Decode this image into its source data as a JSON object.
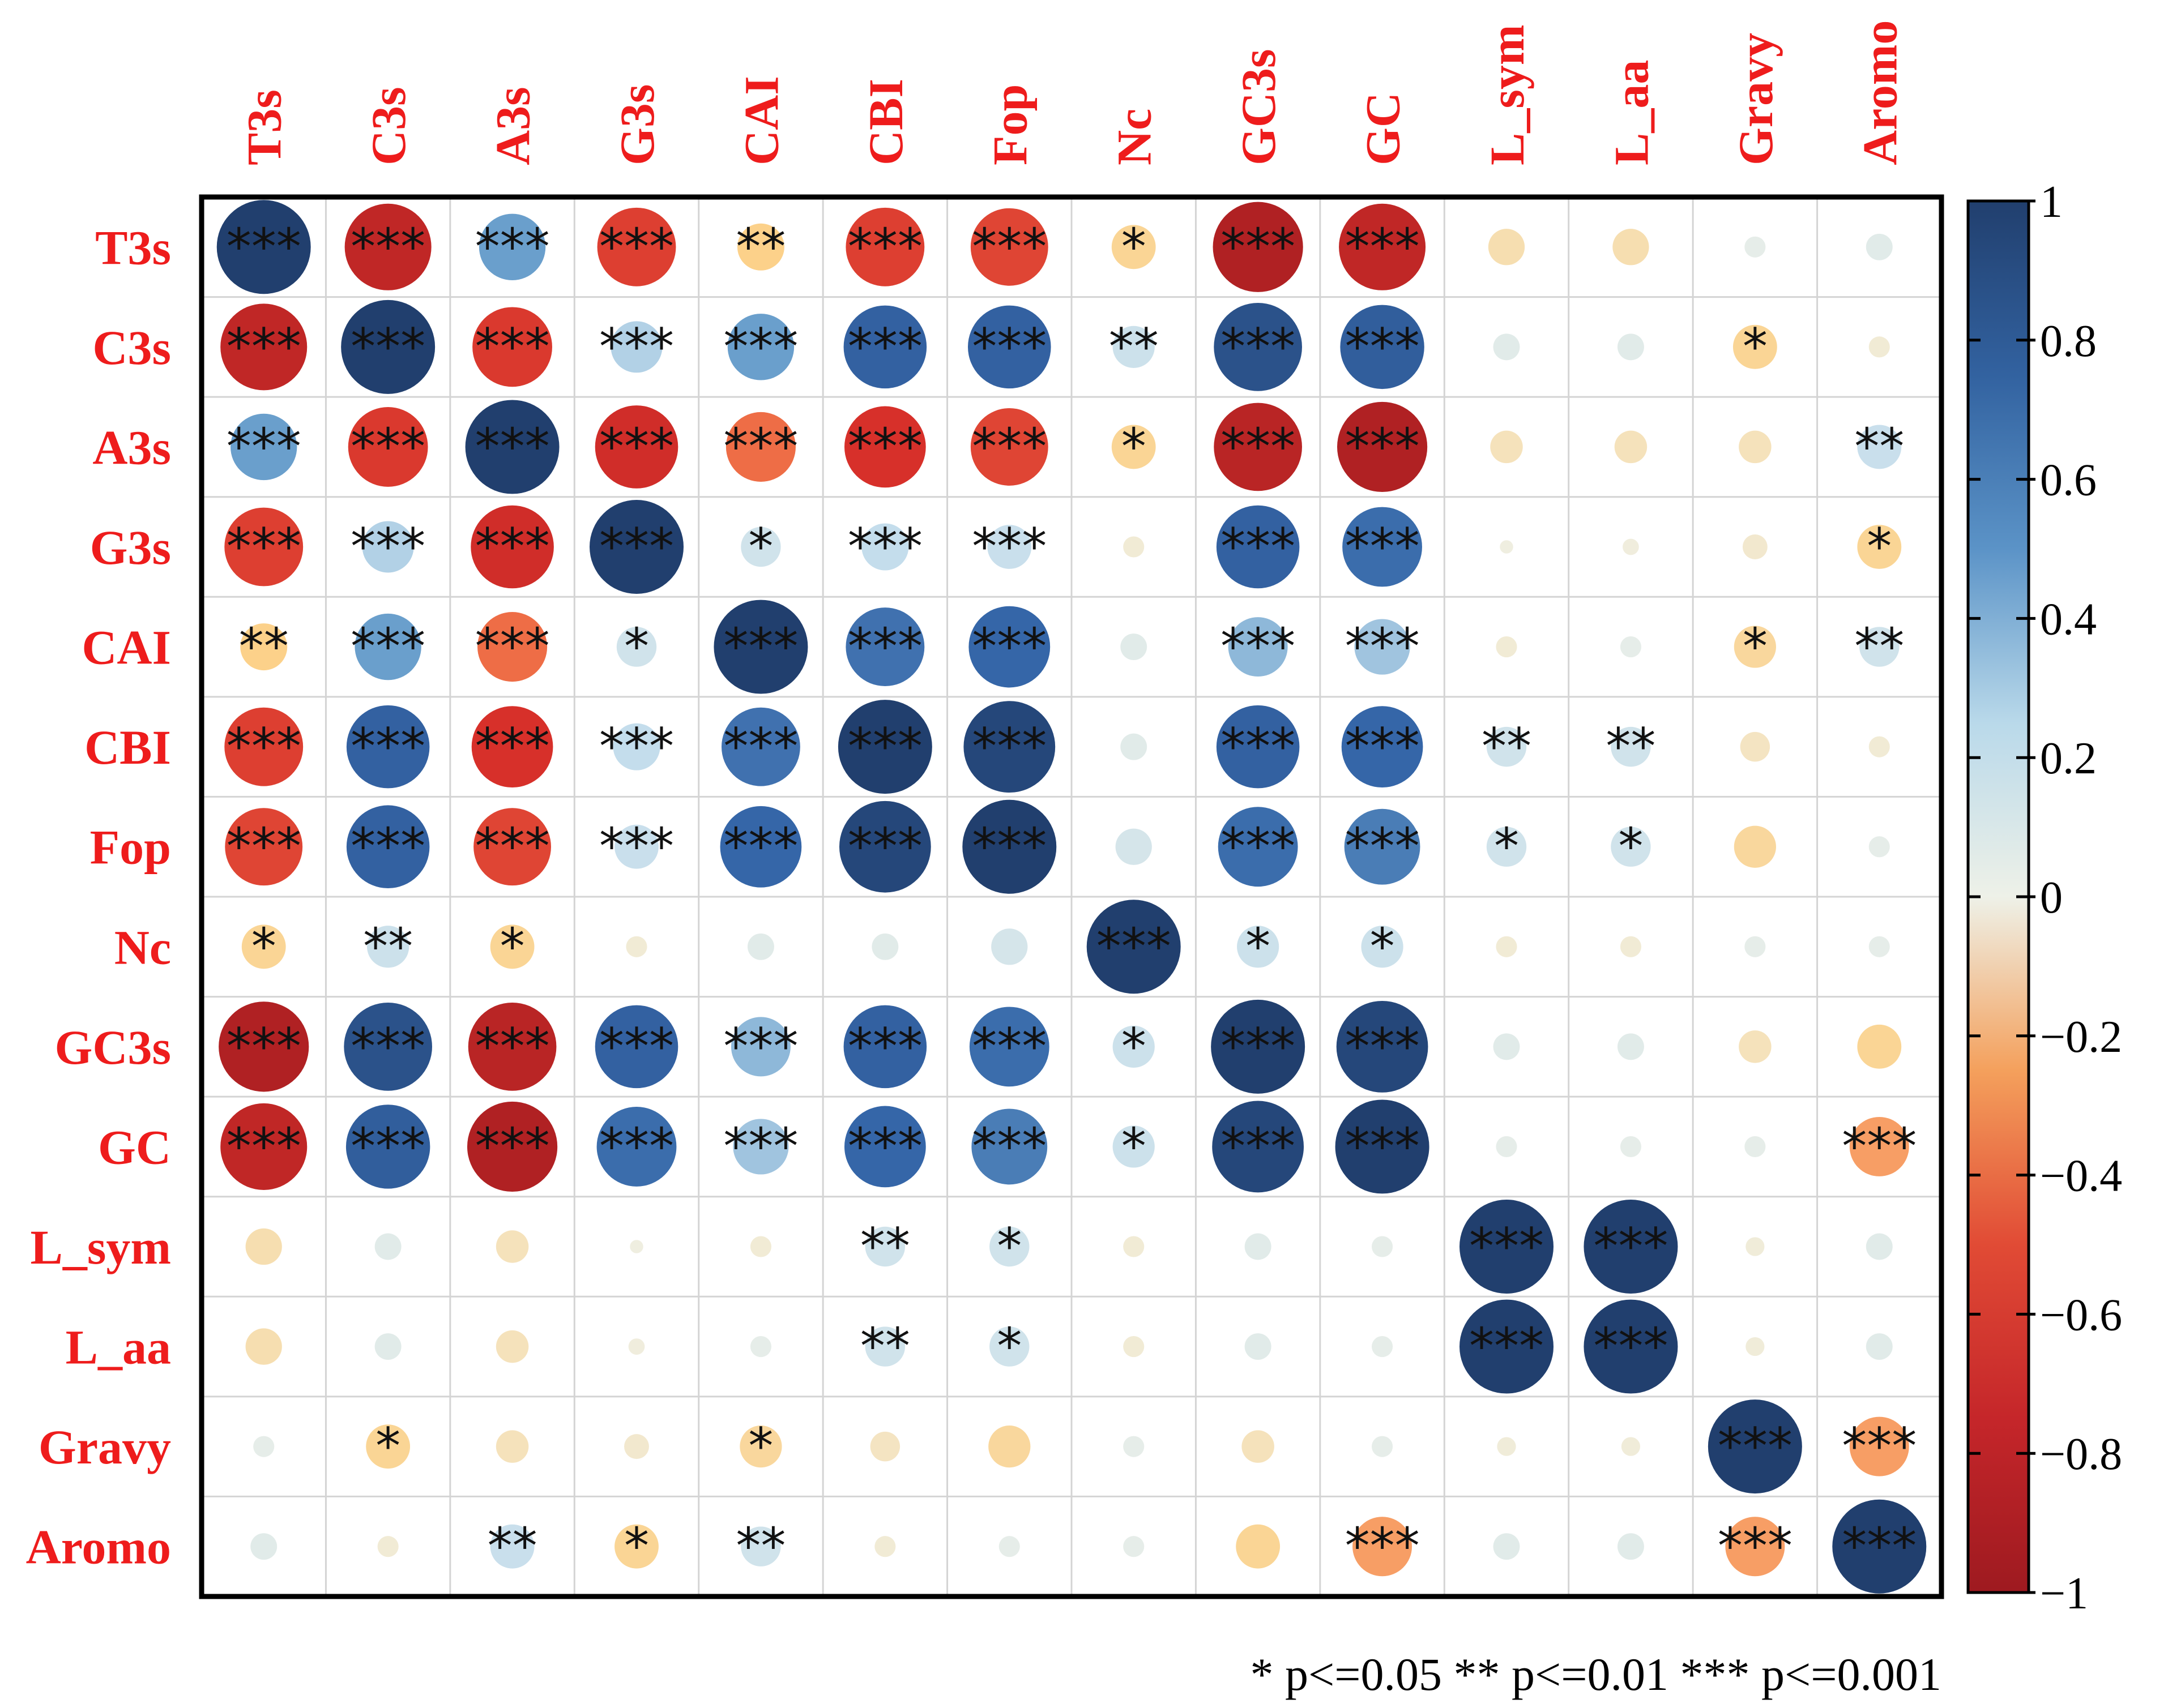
{
  "chart_data": {
    "type": "heatmap",
    "variables": [
      "T3s",
      "C3s",
      "A3s",
      "G3s",
      "CAI",
      "CBI",
      "Fop",
      "Nc",
      "GC3s",
      "GC",
      "L_sym",
      "L_aa",
      "Gravy",
      "Aromo"
    ],
    "matrix": [
      [
        1.0,
        -0.85,
        0.5,
        -0.7,
        -0.25,
        -0.7,
        -0.68,
        -0.22,
        -0.92,
        -0.85,
        -0.15,
        -0.15,
        0.05,
        0.08
      ],
      [
        -0.85,
        1.0,
        -0.72,
        0.3,
        0.5,
        0.78,
        0.78,
        0.2,
        0.88,
        0.8,
        0.08,
        0.08,
        -0.22,
        -0.05
      ],
      [
        0.5,
        -0.72,
        1.0,
        -0.78,
        -0.55,
        -0.75,
        -0.68,
        -0.22,
        -0.88,
        -0.92,
        -0.12,
        -0.12,
        -0.12,
        0.22
      ],
      [
        -0.7,
        0.3,
        -0.78,
        1.0,
        0.18,
        0.25,
        0.22,
        -0.05,
        0.78,
        0.72,
        -0.02,
        -0.03,
        -0.07,
        -0.22
      ],
      [
        -0.25,
        0.5,
        -0.55,
        0.18,
        1.0,
        0.7,
        0.75,
        0.08,
        0.4,
        0.35,
        -0.05,
        0.05,
        -0.2,
        0.18
      ],
      [
        -0.7,
        0.78,
        -0.75,
        0.25,
        0.7,
        1.0,
        0.95,
        0.08,
        0.78,
        0.75,
        0.18,
        0.18,
        -0.1,
        -0.05
      ],
      [
        -0.68,
        0.78,
        -0.68,
        0.22,
        0.75,
        0.95,
        1.0,
        0.15,
        0.72,
        0.65,
        0.18,
        0.18,
        -0.2,
        0.05
      ],
      [
        -0.22,
        0.2,
        -0.22,
        -0.05,
        0.08,
        0.08,
        0.15,
        1.0,
        0.2,
        0.2,
        -0.05,
        -0.05,
        0.05,
        0.05
      ],
      [
        -0.92,
        0.88,
        -0.88,
        0.78,
        0.4,
        0.78,
        0.72,
        0.2,
        1.0,
        0.95,
        0.08,
        0.08,
        -0.12,
        -0.22
      ],
      [
        -0.85,
        0.8,
        -0.92,
        0.72,
        0.35,
        0.75,
        0.65,
        0.2,
        0.95,
        1.0,
        0.05,
        0.05,
        0.05,
        -0.4
      ],
      [
        -0.15,
        0.08,
        -0.12,
        -0.02,
        -0.05,
        0.18,
        0.18,
        -0.05,
        0.08,
        0.05,
        1.0,
        1.0,
        -0.04,
        0.08
      ],
      [
        -0.15,
        0.08,
        -0.12,
        -0.03,
        0.05,
        0.18,
        0.18,
        -0.05,
        0.08,
        0.05,
        1.0,
        1.0,
        -0.04,
        0.08
      ],
      [
        0.05,
        -0.22,
        -0.12,
        -0.07,
        -0.2,
        -0.1,
        -0.2,
        0.05,
        -0.12,
        0.05,
        -0.04,
        -0.04,
        1.0,
        -0.4
      ],
      [
        0.08,
        -0.05,
        0.22,
        -0.22,
        0.18,
        -0.05,
        0.05,
        0.05,
        -0.22,
        -0.4,
        0.08,
        0.08,
        -0.4,
        1.0
      ]
    ],
    "significance": [
      [
        "***",
        "***",
        "***",
        "***",
        "**",
        "***",
        "***",
        "*",
        "***",
        "***",
        "",
        "",
        "",
        ""
      ],
      [
        "***",
        "***",
        "***",
        "***",
        "***",
        "***",
        "***",
        "**",
        "***",
        "***",
        "",
        "",
        "*",
        ""
      ],
      [
        "***",
        "***",
        "***",
        "***",
        "***",
        "***",
        "***",
        "*",
        "***",
        "***",
        "",
        "",
        "",
        "**"
      ],
      [
        "***",
        "***",
        "***",
        "***",
        "*",
        "***",
        "***",
        "",
        "***",
        "***",
        "",
        "",
        "",
        "*"
      ],
      [
        "**",
        "***",
        "***",
        "*",
        "***",
        "***",
        "***",
        "",
        "***",
        "***",
        "",
        "",
        "*",
        "**"
      ],
      [
        "***",
        "***",
        "***",
        "***",
        "***",
        "***",
        "***",
        "",
        "***",
        "***",
        "**",
        "**",
        "",
        ""
      ],
      [
        "***",
        "***",
        "***",
        "***",
        "***",
        "***",
        "***",
        "",
        "***",
        "***",
        "*",
        "*",
        "",
        ""
      ],
      [
        "*",
        "**",
        "*",
        "",
        "",
        "",
        "",
        "***",
        "*",
        "*",
        "",
        "",
        "",
        ""
      ],
      [
        "***",
        "***",
        "***",
        "***",
        "***",
        "***",
        "***",
        "*",
        "***",
        "***",
        "",
        "",
        "",
        ""
      ],
      [
        "***",
        "***",
        "***",
        "***",
        "***",
        "***",
        "***",
        "*",
        "***",
        "***",
        "",
        "",
        "",
        "***"
      ],
      [
        "",
        "",
        "",
        "",
        "",
        "**",
        "*",
        "",
        "",
        "",
        "***",
        "***",
        "",
        ""
      ],
      [
        "",
        "",
        "",
        "",
        "",
        "**",
        "*",
        "",
        "",
        "",
        "***",
        "***",
        "",
        ""
      ],
      [
        "",
        "*",
        "",
        "",
        "*",
        "",
        "",
        "",
        "",
        "",
        "",
        "",
        "***",
        "***"
      ],
      [
        "",
        "",
        "**",
        "*",
        "**",
        "",
        "",
        "",
        "",
        "***",
        "",
        "",
        "***",
        "***"
      ]
    ],
    "colorbar": {
      "range": [
        -1,
        1
      ],
      "ticks": [
        "1",
        "0.8",
        "0.6",
        "0.4",
        "0.2",
        "0",
        "−0.2",
        "−0.4",
        "−0.6",
        "−0.8",
        "−1"
      ],
      "tick_values": [
        1,
        0.8,
        0.6,
        0.4,
        0.2,
        0,
        -0.2,
        -0.4,
        -0.6,
        -0.8,
        -1
      ],
      "colors": [
        "#9e1a20",
        "#d7302a",
        "#f47c4d",
        "#fcd18a",
        "#eef1e8",
        "#c4ddec",
        "#6a9fcc",
        "#3566a8",
        "#213f6e"
      ]
    },
    "label_color": "#ee1c1c",
    "legend_text": "* p<=0.05   ** p<=0.01   *** p<=0.001"
  }
}
